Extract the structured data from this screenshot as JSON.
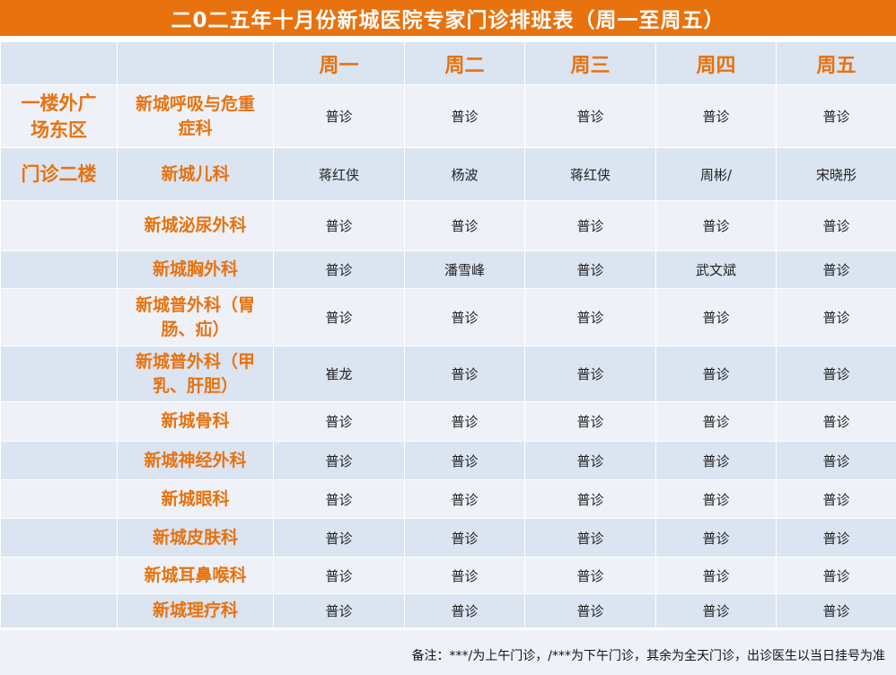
{
  "title": "二0二五年十月份新城医院专家门诊排班表（周一至周五）",
  "days": [
    "周一",
    "周二",
    "周三",
    "周四",
    "周五"
  ],
  "rows": [
    {
      "location": "一楼外广场东区",
      "department": "新城呼吸与危重症科",
      "cells": [
        "普诊",
        "普诊",
        "普诊",
        "普诊",
        "普诊"
      ]
    },
    {
      "location": "门诊二楼",
      "department": "新城儿科",
      "cells": [
        "蒋红侠",
        "杨波",
        "蒋红侠",
        "周彬/",
        "宋晓彤"
      ]
    },
    {
      "location": "",
      "department": "新城泌尿外科",
      "cells": [
        "普诊",
        "普诊",
        "普诊",
        "普诊",
        "普诊"
      ]
    },
    {
      "location": "",
      "department": "新城胸外科",
      "cells": [
        "普诊",
        "潘雪峰",
        "普诊",
        "武文斌",
        "普诊"
      ]
    },
    {
      "location": "",
      "department": "新城普外科（胃肠、疝）",
      "cells": [
        "普诊",
        "普诊",
        "普诊",
        "普诊",
        "普诊"
      ]
    },
    {
      "location": "",
      "department": "新城普外科（甲乳、肝胆）",
      "cells": [
        "崔龙",
        "普诊",
        "普诊",
        "普诊",
        "普诊"
      ]
    },
    {
      "location": "",
      "department": "新城骨科",
      "cells": [
        "普诊",
        "普诊",
        "普诊",
        "普诊",
        "普诊"
      ]
    },
    {
      "location": "",
      "department": "新城神经外科",
      "cells": [
        "普诊",
        "普诊",
        "普诊",
        "普诊",
        "普诊"
      ]
    },
    {
      "location": "",
      "department": "新城眼科",
      "cells": [
        "普诊",
        "普诊",
        "普诊",
        "普诊",
        "普诊"
      ]
    },
    {
      "location": "",
      "department": "新城皮肤科",
      "cells": [
        "普诊",
        "普诊",
        "普诊",
        "普诊",
        "普诊"
      ]
    },
    {
      "location": "",
      "department": "新城耳鼻喉科",
      "cells": [
        "普诊",
        "普诊",
        "普诊",
        "普诊",
        "普诊"
      ]
    },
    {
      "location": "",
      "department": "新城理疗科",
      "cells": [
        "普诊",
        "普诊",
        "普诊",
        "普诊",
        "普诊"
      ]
    }
  ],
  "note": "备注：***/为上午门诊，/***为下午门诊，其余为全天门诊，出诊医生以当日挂号为准",
  "colors": {
    "accent": "#e8720e",
    "row_dark": "#dbe4f1",
    "row_light": "#eef2f8"
  }
}
